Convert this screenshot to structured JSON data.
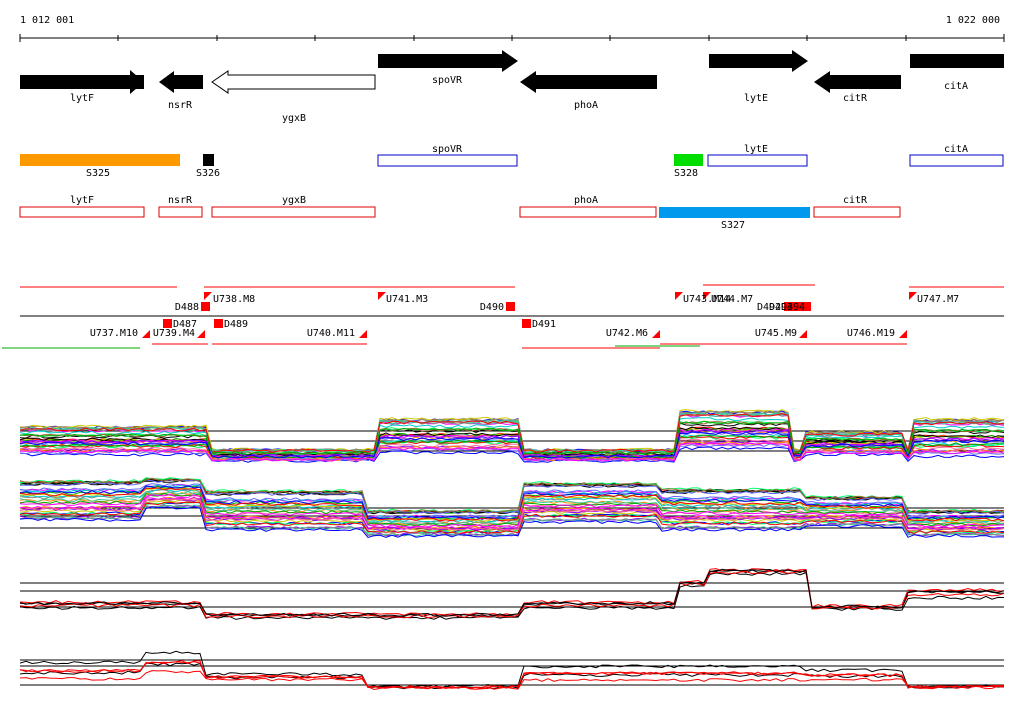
{
  "coordinates": {
    "start_label": "1 012 001",
    "end_label": "1 022 000"
  },
  "genes_top": [
    {
      "id": "lytF",
      "label": "lytF"
    },
    {
      "id": "nsrR",
      "label": "nsrR"
    },
    {
      "id": "ygxB",
      "label": "ygxB"
    },
    {
      "id": "spoVR",
      "label": "spoVR"
    },
    {
      "id": "phoA",
      "label": "phoA"
    },
    {
      "id": "lytE",
      "label": "lytE"
    },
    {
      "id": "citR",
      "label": "citR"
    },
    {
      "id": "citA",
      "label": "citA"
    }
  ],
  "segments": [
    {
      "id": "S325",
      "label": "S325",
      "color": "#ff9900"
    },
    {
      "id": "S326",
      "label": "S326",
      "color": "#000000"
    },
    {
      "id": "S328",
      "label": "S328",
      "color": "#00dd00"
    },
    {
      "id": "S327",
      "label": "S327",
      "color": "#0099ee"
    }
  ],
  "feature_boxes_forward": [
    {
      "label": "spoVR"
    },
    {
      "label": "lytE"
    },
    {
      "label": "citA"
    }
  ],
  "feature_boxes_reverse": [
    {
      "label": "lytF"
    },
    {
      "label": "nsrR"
    },
    {
      "label": "ygxB"
    },
    {
      "label": "phoA"
    },
    {
      "label": "citR"
    }
  ],
  "upshift_labels": [
    {
      "label": "U738.M8"
    },
    {
      "label": "U741.M3"
    },
    {
      "label": "U743.M14"
    },
    {
      "label": "U744.M7"
    },
    {
      "label": "U747.M7"
    },
    {
      "label": "U737.M10"
    },
    {
      "label": "U739.M4"
    },
    {
      "label": "U740.M11"
    },
    {
      "label": "U742.M6"
    },
    {
      "label": "U745.M9"
    },
    {
      "label": "U746.M19"
    }
  ],
  "downshift_labels": [
    {
      "label": "D488"
    },
    {
      "label": "D487"
    },
    {
      "label": "D489"
    },
    {
      "label": "D490"
    },
    {
      "label": "D491"
    },
    {
      "label": "D492"
    },
    {
      "label": "D493"
    },
    {
      "label": "D494"
    }
  ],
  "colors": {
    "forward_box": "#0000cc",
    "reverse_box": "#dd0000",
    "marker": "#ff0000"
  }
}
